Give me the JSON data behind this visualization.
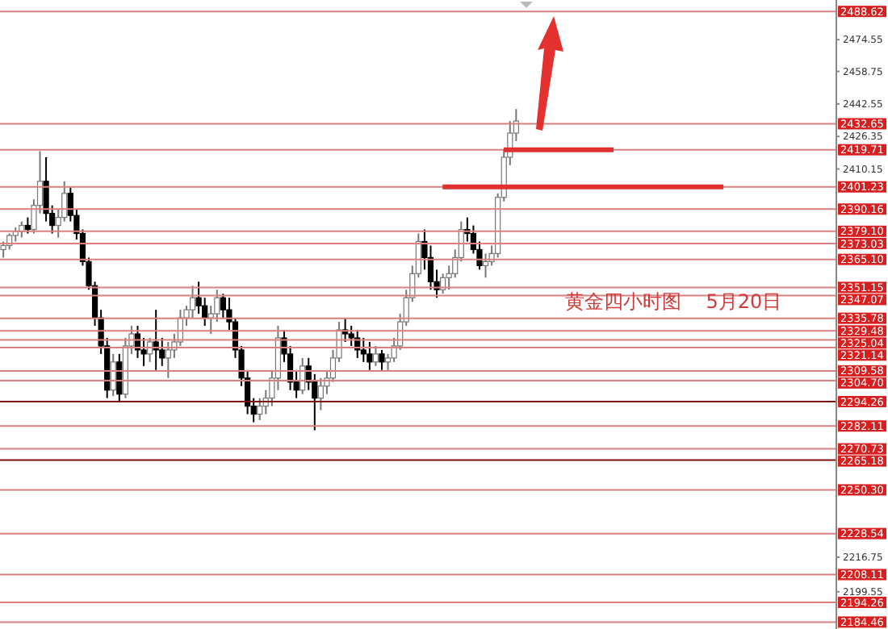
{
  "chart_data": {
    "type": "candlestick",
    "annotations": [
      "黄金四小时图    5月20日"
    ],
    "categories": [
      null,
      null,
      null,
      null,
      null,
      null,
      null,
      null,
      null,
      null,
      null,
      null,
      null,
      null,
      null,
      null,
      null,
      null,
      null,
      null,
      null,
      null,
      null,
      null,
      null,
      null,
      null,
      null,
      null,
      null,
      null,
      null,
      null,
      null,
      null,
      null,
      null,
      null,
      null,
      null,
      null,
      null,
      null,
      null,
      null,
      null,
      null,
      null,
      null,
      null,
      null,
      null,
      null,
      null,
      null,
      null,
      null,
      null,
      null,
      null,
      null,
      null,
      null,
      null,
      null,
      null,
      null,
      null,
      null,
      null,
      null,
      null,
      null,
      null,
      null,
      null,
      null,
      null,
      null,
      null,
      null,
      null,
      null,
      null,
      null,
      null,
      null,
      null,
      null,
      null,
      null,
      null,
      null,
      null,
      null,
      null,
      null,
      null,
      null,
      null,
      null,
      null,
      null,
      null,
      null,
      null,
      null,
      null,
      null,
      null,
      null,
      null,
      null,
      null,
      null,
      null,
      null,
      null,
      null,
      null,
      null,
      null,
      null,
      null,
      null,
      null,
      null,
      null,
      null,
      null,
      null,
      null,
      null,
      null,
      null,
      null,
      null
    ],
    "ohlc": [
      [
        2370,
        2374,
        2366,
        2372
      ],
      [
        2372,
        2378,
        2370,
        2377
      ],
      [
        2377,
        2381,
        2374,
        2379
      ],
      [
        2379,
        2384,
        2376,
        2382
      ],
      [
        2382,
        2386,
        2378,
        2380
      ],
      [
        2380,
        2395,
        2378,
        2392
      ],
      [
        2392,
        2419,
        2388,
        2404
      ],
      [
        2404,
        2416,
        2384,
        2388
      ],
      [
        2388,
        2392,
        2378,
        2382
      ],
      [
        2382,
        2390,
        2376,
        2386
      ],
      [
        2386,
        2404,
        2384,
        2398
      ],
      [
        2398,
        2401,
        2384,
        2387
      ],
      [
        2387,
        2390,
        2375,
        2378
      ],
      [
        2378,
        2380,
        2362,
        2364
      ],
      [
        2364,
        2366,
        2350,
        2352
      ],
      [
        2352,
        2354,
        2332,
        2336
      ],
      [
        2336,
        2340,
        2318,
        2322
      ],
      [
        2322,
        2326,
        2296,
        2300
      ],
      [
        2300,
        2318,
        2297,
        2314
      ],
      [
        2314,
        2318,
        2294,
        2298
      ],
      [
        2298,
        2326,
        2296,
        2322
      ],
      [
        2322,
        2332,
        2318,
        2328
      ],
      [
        2328,
        2332,
        2316,
        2320
      ],
      [
        2320,
        2326,
        2312,
        2318
      ],
      [
        2318,
        2326,
        2314,
        2324
      ],
      [
        2324,
        2340,
        2310,
        2320
      ],
      [
        2320,
        2326,
        2312,
        2316
      ],
      [
        2316,
        2324,
        2306,
        2320
      ],
      [
        2320,
        2328,
        2316,
        2324
      ],
      [
        2324,
        2340,
        2322,
        2336
      ],
      [
        2336,
        2342,
        2332,
        2340
      ],
      [
        2340,
        2352,
        2336,
        2346
      ],
      [
        2346,
        2354,
        2338,
        2342
      ],
      [
        2342,
        2346,
        2332,
        2336
      ],
      [
        2336,
        2342,
        2328,
        2338
      ],
      [
        2338,
        2350,
        2334,
        2346
      ],
      [
        2346,
        2348,
        2336,
        2340
      ],
      [
        2340,
        2346,
        2330,
        2334
      ],
      [
        2334,
        2336,
        2316,
        2320
      ],
      [
        2320,
        2322,
        2302,
        2306
      ],
      [
        2306,
        2310,
        2288,
        2292
      ],
      [
        2292,
        2296,
        2284,
        2288
      ],
      [
        2288,
        2296,
        2285,
        2292
      ],
      [
        2292,
        2300,
        2288,
        2296
      ],
      [
        2296,
        2310,
        2292,
        2306
      ],
      [
        2306,
        2332,
        2300,
        2326
      ],
      [
        2326,
        2330,
        2314,
        2318
      ],
      [
        2318,
        2322,
        2300,
        2304
      ],
      [
        2304,
        2310,
        2296,
        2300
      ],
      [
        2300,
        2316,
        2298,
        2312
      ],
      [
        2312,
        2316,
        2300,
        2304
      ],
      [
        2304,
        2308,
        2280,
        2296
      ],
      [
        2296,
        2306,
        2290,
        2302
      ],
      [
        2302,
        2310,
        2298,
        2306
      ],
      [
        2306,
        2320,
        2304,
        2316
      ],
      [
        2316,
        2334,
        2314,
        2330
      ],
      [
        2330,
        2336,
        2324,
        2328
      ],
      [
        2328,
        2332,
        2322,
        2326
      ],
      [
        2326,
        2330,
        2316,
        2320
      ],
      [
        2320,
        2326,
        2314,
        2318
      ],
      [
        2318,
        2324,
        2310,
        2314
      ],
      [
        2314,
        2322,
        2312,
        2318
      ],
      [
        2318,
        2320,
        2310,
        2314
      ],
      [
        2314,
        2318,
        2310,
        2316
      ],
      [
        2316,
        2326,
        2314,
        2322
      ],
      [
        2322,
        2338,
        2320,
        2334
      ],
      [
        2334,
        2350,
        2332,
        2346
      ],
      [
        2346,
        2362,
        2344,
        2358
      ],
      [
        2358,
        2378,
        2356,
        2374
      ],
      [
        2374,
        2380,
        2360,
        2366
      ],
      [
        2366,
        2372,
        2350,
        2354
      ],
      [
        2354,
        2360,
        2346,
        2350
      ],
      [
        2350,
        2358,
        2348,
        2356
      ],
      [
        2356,
        2362,
        2350,
        2358
      ],
      [
        2358,
        2370,
        2356,
        2366
      ],
      [
        2366,
        2384,
        2364,
        2380
      ],
      [
        2380,
        2386,
        2374,
        2378
      ],
      [
        2378,
        2382,
        2368,
        2370
      ],
      [
        2370,
        2374,
        2360,
        2362
      ],
      [
        2362,
        2368,
        2356,
        2364
      ],
      [
        2364,
        2372,
        2362,
        2368
      ],
      [
        2368,
        2398,
        2366,
        2396
      ],
      [
        2396,
        2420,
        2394,
        2416
      ],
      [
        2416,
        2434,
        2412,
        2428
      ],
      [
        2428,
        2440,
        2424,
        2434
      ],
      null,
      null,
      null,
      null,
      null,
      null,
      null,
      null,
      null,
      null,
      null,
      null,
      null,
      null,
      null,
      null,
      null,
      null,
      null,
      null,
      null,
      null,
      null,
      null,
      null,
      null,
      null,
      null,
      null,
      null,
      null,
      null,
      null,
      null,
      null,
      null,
      null,
      null,
      null,
      null,
      null,
      null,
      null,
      null,
      null,
      null,
      null,
      null,
      null,
      null,
      null,
      null
    ],
    "series": [
      {
        "type": "line",
        "color": "#e03030",
        "values": [
          null,
          null,
          null,
          null,
          null,
          null,
          null,
          null,
          null,
          null,
          null,
          null,
          null,
          null,
          null,
          null,
          null,
          null,
          null,
          null,
          null,
          null,
          null,
          null,
          null,
          null,
          null,
          null,
          null,
          null,
          null,
          null,
          null,
          null,
          null,
          null,
          null,
          null,
          null,
          null,
          null,
          null,
          null,
          null,
          null,
          null,
          null,
          null,
          null,
          null,
          null,
          null,
          null,
          null,
          null,
          null,
          null,
          null,
          null,
          null,
          null,
          null,
          null,
          null,
          null,
          null,
          null,
          null,
          null,
          null,
          null,
          null,
          null,
          null,
          null,
          null,
          null,
          null,
          null,
          null,
          null,
          null,
          2419.71,
          2419.71,
          2419.71,
          2419.71,
          2419.71,
          2419.71,
          2419.71,
          2419.71,
          2419.71,
          2419.71,
          2419.71,
          2419.71,
          2419.71,
          2419.71,
          2419.71,
          2419.71,
          2419.71,
          2419.71,
          2419.71,
          null,
          null,
          null,
          null,
          null,
          null,
          null,
          null,
          null,
          null,
          null,
          null,
          null,
          null,
          null,
          null,
          null,
          null,
          null,
          null,
          null,
          null,
          null,
          null,
          null,
          null,
          null,
          null,
          null,
          null,
          null,
          null,
          null,
          null,
          null,
          null
        ]
      },
      {
        "type": "line",
        "color": "#e03030",
        "values": [
          null,
          null,
          null,
          null,
          null,
          null,
          null,
          null,
          null,
          null,
          null,
          null,
          null,
          null,
          null,
          null,
          null,
          null,
          null,
          null,
          null,
          null,
          null,
          null,
          null,
          null,
          null,
          null,
          null,
          null,
          null,
          null,
          null,
          null,
          null,
          null,
          null,
          null,
          null,
          null,
          null,
          null,
          null,
          null,
          null,
          null,
          null,
          null,
          null,
          null,
          null,
          null,
          null,
          null,
          null,
          null,
          null,
          null,
          null,
          null,
          null,
          null,
          null,
          null,
          null,
          null,
          null,
          null,
          null,
          null,
          null,
          null,
          2401.23,
          2401.23,
          2401.23,
          2401.23,
          2401.23,
          2401.23,
          2401.23,
          2401.23,
          2401.23,
          2401.23,
          2401.23,
          2401.23,
          2401.23,
          2401.23,
          2401.23,
          2401.23,
          2401.23,
          2401.23,
          2401.23,
          2401.23,
          2401.23,
          2401.23,
          2401.23,
          2401.23,
          2401.23,
          2401.23,
          2401.23,
          2401.23,
          2401.23,
          2401.23,
          2401.23,
          2401.23,
          2401.23,
          2401.23,
          2401.23,
          2401.23,
          2401.23,
          2401.23,
          2401.23,
          2401.23,
          2401.23,
          2401.23,
          2401.23,
          2401.23,
          2401.23,
          2401.23,
          2401.23,
          null,
          null,
          null,
          null,
          null,
          null,
          null,
          null,
          null,
          null,
          null,
          null,
          null,
          null,
          null,
          null,
          null,
          null
        ]
      }
    ],
    "ylim": [
      2181,
      2494.3
    ],
    "yticks": [
      2474.55,
      2458.75,
      2442.55,
      2426.35,
      2410.15,
      2216.75,
      2199.55
    ],
    "tick_labels": "y",
    "ref_lines": [
      {
        "axis": "y",
        "value": 2488.62,
        "label": "2488.62",
        "color": "#d98080"
      },
      {
        "axis": "y",
        "value": 2432.65,
        "label": "2432.65",
        "color": "#d98080"
      },
      {
        "axis": "y",
        "value": 2419.71,
        "label": "2419.71",
        "color": "#d98080"
      },
      {
        "axis": "y",
        "value": 2401.23,
        "label": "2401.23",
        "color": "#d98080"
      },
      {
        "axis": "y",
        "value": 2390.16,
        "label": "2390.16",
        "color": "#d98080"
      },
      {
        "axis": "y",
        "value": 2379.1,
        "label": "2379.10",
        "color": "#d98080"
      },
      {
        "axis": "y",
        "value": 2373.03,
        "label": "2373.03",
        "color": "#d98080"
      },
      {
        "axis": "y",
        "value": 2365.1,
        "label": "2365.10",
        "color": "#d98080"
      },
      {
        "axis": "y",
        "value": 2351.15,
        "label": "2351.15",
        "color": "#d98080"
      },
      {
        "axis": "y",
        "value": 2347.07,
        "label": "2347.07",
        "color": "#d98080"
      },
      {
        "axis": "y",
        "value": 2335.78,
        "label": "2335.78",
        "color": "#d98080"
      },
      {
        "axis": "y",
        "value": 2329.48,
        "label": "2329.48",
        "color": "#d98080"
      },
      {
        "axis": "y",
        "value": 2325.04,
        "label": "2325.04",
        "color": "#d98080"
      },
      {
        "axis": "y",
        "value": 2321.14,
        "label": "2321.14",
        "color": "#d98080"
      },
      {
        "axis": "y",
        "value": 2309.58,
        "label": "2309.58",
        "color": "#d98080"
      },
      {
        "axis": "y",
        "value": 2304.7,
        "label": "2304.70",
        "color": "#d98080"
      },
      {
        "axis": "y",
        "value": 2294.26,
        "label": "2294.26",
        "color": "#7a1010"
      },
      {
        "axis": "y",
        "value": 2282.11,
        "label": "2282.11",
        "color": "#d98080"
      },
      {
        "axis": "y",
        "value": 2270.73,
        "label": "2270.73",
        "color": "#d98080"
      },
      {
        "axis": "y",
        "value": 2265.18,
        "label": "2265.18",
        "color": "#7a1010"
      },
      {
        "axis": "y",
        "value": 2250.3,
        "label": "2250.30",
        "color": "#d98080"
      },
      {
        "axis": "y",
        "value": 2228.54,
        "label": "2228.54",
        "color": "#d98080"
      },
      {
        "axis": "y",
        "value": 2208.11,
        "label": "2208.11",
        "color": "#d98080"
      },
      {
        "axis": "y",
        "value": 2194.26,
        "label": "2194.26",
        "color": "#d98080"
      },
      {
        "axis": "y",
        "value": 2184.46,
        "label": "2184.46",
        "color": "#d98080"
      }
    ]
  }
}
